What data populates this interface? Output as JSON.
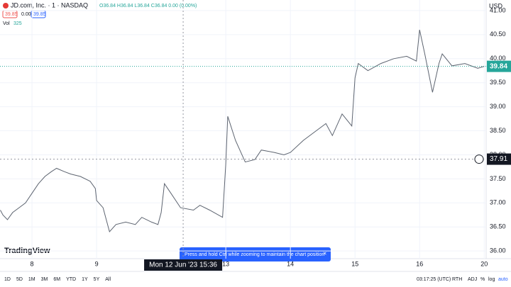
{
  "chart_data": {
    "type": "line",
    "color": "#5d6470",
    "grid": true,
    "x": [
      -0.49,
      -0.45,
      -0.38,
      -0.3,
      -0.2,
      -0.1,
      0,
      0.1,
      0.2,
      0.3,
      0.38,
      0.5,
      0.6,
      0.75,
      0.9,
      0.98,
      1.0,
      1.1,
      1.2,
      1.3,
      1.45,
      1.6,
      1.7,
      1.85,
      1.95,
      2.0,
      2.05,
      2.15,
      2.3,
      2.5,
      2.6,
      2.75,
      2.95,
      3.0,
      3.03,
      3.15,
      3.3,
      3.45,
      3.55,
      3.75,
      3.9,
      4.0,
      4.2,
      4.4,
      4.55,
      4.65,
      4.8,
      4.95,
      5.0,
      5.05,
      5.2,
      5.4,
      5.6,
      5.8,
      5.95,
      6.0,
      6.08,
      6.2,
      6.3,
      6.35,
      6.5,
      6.7,
      6.9,
      7.0
    ],
    "values": [
      36.85,
      36.75,
      36.65,
      36.8,
      36.9,
      37.0,
      37.2,
      37.4,
      37.55,
      37.65,
      37.72,
      37.65,
      37.6,
      37.55,
      37.45,
      37.3,
      37.05,
      36.9,
      36.4,
      36.55,
      36.6,
      36.55,
      36.7,
      36.6,
      36.55,
      36.8,
      37.4,
      37.2,
      36.9,
      36.85,
      36.95,
      36.85,
      36.7,
      37.8,
      38.8,
      38.3,
      37.85,
      37.9,
      38.1,
      38.05,
      38.0,
      38.05,
      38.3,
      38.5,
      38.65,
      38.4,
      38.85,
      38.6,
      39.6,
      39.9,
      39.75,
      39.9,
      40.0,
      40.05,
      39.95,
      40.6,
      40.1,
      39.3,
      39.9,
      40.1,
      39.85,
      39.9,
      39.8,
      39.84
    ],
    "xlim": [
      -0.495,
      7.03
    ],
    "xticks": [
      {
        "value": 0,
        "label": "8"
      },
      {
        "value": 1,
        "label": "9"
      },
      {
        "value": 3,
        "label": "13"
      },
      {
        "value": 4,
        "label": "14"
      },
      {
        "value": 5,
        "label": "15"
      },
      {
        "value": 6,
        "label": "16"
      },
      {
        "value": 7,
        "label": "20"
      }
    ],
    "ylim": [
      35.84,
      41.22
    ],
    "yticks": [
      {
        "value": 36,
        "label": "36.00"
      },
      {
        "value": 36.5,
        "label": "36.50"
      },
      {
        "value": 37,
        "label": "37.00"
      },
      {
        "value": 37.5,
        "label": "37.50"
      },
      {
        "value": 38,
        "label": "38.00"
      },
      {
        "value": 38.5,
        "label": "38.50"
      },
      {
        "value": 39,
        "label": "39.00"
      },
      {
        "value": 39.5,
        "label": "39.50"
      },
      {
        "value": 40,
        "label": "40.00"
      },
      {
        "value": 40.5,
        "label": "40.50"
      },
      {
        "value": 41,
        "label": "41.00"
      }
    ],
    "last_price": {
      "value": 39.84,
      "label": "39.84"
    },
    "crosshair": {
      "x": 2.34,
      "y": 37.91,
      "y_label": "37.91",
      "x_label": "Mon 12 Jun '23   15:36"
    }
  },
  "ui": {
    "title": "JD.com, Inc. · 1 · NASDAQ",
    "ohlc": "O36.84 H36.84 L36.84 C36.84 0.00 (0.00%)",
    "bid": "39.85",
    "spread": "0.00",
    "ask": "39.85",
    "vol_label": "Vol",
    "vol_value": "325",
    "currency": "USD",
    "logo": "TradingView",
    "toast": "Press and hold Ctrl while zooming to maintain the chart position",
    "ranges": [
      "1D",
      "5D",
      "1M",
      "3M",
      "6M",
      "YTD",
      "1Y",
      "5Y",
      "All"
    ],
    "clock": "03:17:25 (UTC)",
    "rth": "RTH",
    "adj": "ADJ",
    "pct": "%",
    "log": "log",
    "auto": "auto"
  }
}
